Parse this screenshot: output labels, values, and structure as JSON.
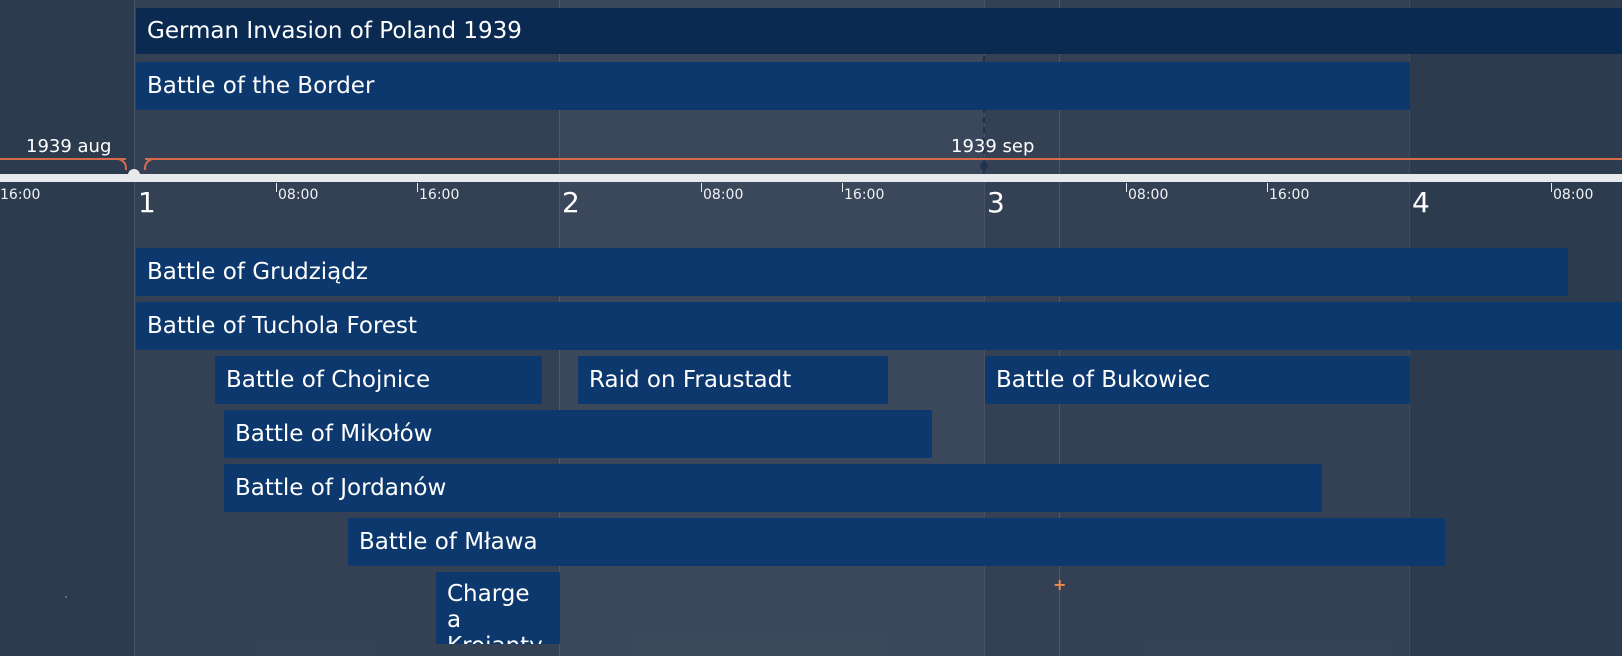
{
  "timeline": {
    "months": [
      {
        "label": "1939 aug"
      },
      {
        "label": "1939 sep"
      }
    ],
    "days": [
      "1",
      "2",
      "3",
      "4"
    ],
    "hour_ticks": [
      {
        "label": "16:00"
      },
      {
        "label": "08:00"
      },
      {
        "label": "16:00"
      },
      {
        "label": "08:00"
      },
      {
        "label": "16:00"
      },
      {
        "label": "08:00"
      },
      {
        "label": "16:00"
      },
      {
        "label": "08:00"
      }
    ],
    "events": {
      "invasion": "German Invasion of Poland 1939",
      "border": "Battle of the Border",
      "grudziadz": "Battle of Grudziądz",
      "tuchola": "Battle of Tuchola Forest",
      "chojnice": "Battle of Chojnice",
      "fraustadt": "Raid on Fraustadt",
      "bukowiec": "Battle of Bukowiec",
      "mikolow": "Battle of Mikołów",
      "jordanow": "Battle of Jordanów",
      "mlawa": "Battle of Mława",
      "krojanty": "Charge a Krojanty"
    },
    "colors": {
      "background": "#2d3b4f",
      "event_bar": "#0c386d",
      "parent_bar": "#0b2a52",
      "axis": "#e7e9ec",
      "month_bracket": "#d8694a",
      "marker": "#f08a4b"
    }
  }
}
